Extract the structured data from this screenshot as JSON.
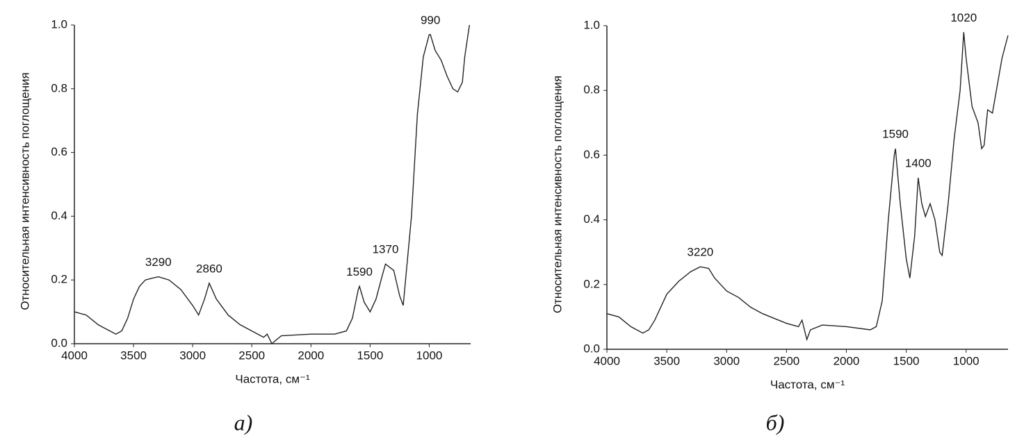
{
  "chart_data": [
    {
      "type": "line",
      "caption": "а)",
      "xlabel": "Частота, см⁻¹",
      "ylabel": "Относительная интенсивность поглощения",
      "xlim": [
        4000,
        650
      ],
      "ylim": [
        0,
        1
      ],
      "color": "#222",
      "xticks": [
        4000,
        3500,
        3000,
        2500,
        2000,
        1500,
        1000
      ],
      "yticks": [
        {
          "value": 0,
          "label": "0.0"
        },
        0.2,
        0.4,
        0.6,
        0.8,
        {
          "value": 1,
          "label": "1.0"
        }
      ],
      "annotations": [
        3290,
        2860,
        1590,
        1370,
        990
      ],
      "x": [
        4000,
        3900,
        3800,
        3750,
        3700,
        3650,
        3600,
        3550,
        3500,
        3450,
        3400,
        3350,
        3290,
        3200,
        3100,
        3000,
        2950,
        2900,
        2860,
        2800,
        2700,
        2600,
        2500,
        2400,
        2370,
        2330,
        2300,
        2250,
        2000,
        1800,
        1700,
        1650,
        1600,
        1590,
        1550,
        1500,
        1450,
        1400,
        1370,
        1300,
        1250,
        1220,
        1200,
        1150,
        1100,
        1050,
        1000,
        990,
        950,
        900,
        850,
        800,
        760,
        720,
        700,
        660
      ],
      "values": [
        0.1,
        0.09,
        0.06,
        0.05,
        0.04,
        0.03,
        0.04,
        0.08,
        0.14,
        0.18,
        0.2,
        0.205,
        0.21,
        0.2,
        0.17,
        0.12,
        0.09,
        0.14,
        0.19,
        0.14,
        0.09,
        0.06,
        0.04,
        0.02,
        0.03,
        0.0,
        0.01,
        0.025,
        0.03,
        0.03,
        0.04,
        0.08,
        0.17,
        0.18,
        0.13,
        0.1,
        0.14,
        0.21,
        0.25,
        0.23,
        0.15,
        0.12,
        0.2,
        0.4,
        0.72,
        0.9,
        0.97,
        0.97,
        0.92,
        0.89,
        0.84,
        0.8,
        0.79,
        0.82,
        0.9,
        1.0
      ]
    },
    {
      "type": "line",
      "caption": "б)",
      "xlabel": "Частота, см⁻¹",
      "ylabel": "Относительная интенсивность поглощения",
      "xlim": [
        4000,
        650
      ],
      "ylim": [
        0,
        1
      ],
      "color": "#222",
      "xticks": [
        4000,
        3500,
        3000,
        2500,
        2000,
        1500,
        1000
      ],
      "yticks": [
        {
          "value": 0,
          "label": "0.0"
        },
        0.2,
        0.4,
        0.6,
        0.8,
        {
          "value": 1,
          "label": "1.0"
        }
      ],
      "annotations": [
        3220,
        1590,
        1400,
        1020
      ],
      "x": [
        4000,
        3900,
        3800,
        3700,
        3650,
        3600,
        3500,
        3400,
        3300,
        3220,
        3150,
        3100,
        3000,
        2900,
        2800,
        2700,
        2600,
        2500,
        2400,
        2370,
        2330,
        2300,
        2200,
        2000,
        1800,
        1750,
        1700,
        1650,
        1600,
        1590,
        1550,
        1500,
        1470,
        1430,
        1400,
        1370,
        1340,
        1300,
        1260,
        1220,
        1200,
        1150,
        1100,
        1050,
        1020,
        1000,
        950,
        900,
        870,
        850,
        820,
        780,
        700,
        650
      ],
      "values": [
        0.11,
        0.1,
        0.07,
        0.05,
        0.06,
        0.09,
        0.17,
        0.21,
        0.24,
        0.255,
        0.25,
        0.22,
        0.18,
        0.16,
        0.13,
        0.11,
        0.095,
        0.08,
        0.07,
        0.09,
        0.03,
        0.06,
        0.075,
        0.07,
        0.06,
        0.07,
        0.15,
        0.4,
        0.6,
        0.62,
        0.45,
        0.28,
        0.22,
        0.35,
        0.53,
        0.45,
        0.41,
        0.45,
        0.4,
        0.3,
        0.29,
        0.45,
        0.65,
        0.8,
        0.98,
        0.9,
        0.75,
        0.7,
        0.62,
        0.63,
        0.74,
        0.73,
        0.9,
        0.97
      ]
    }
  ]
}
